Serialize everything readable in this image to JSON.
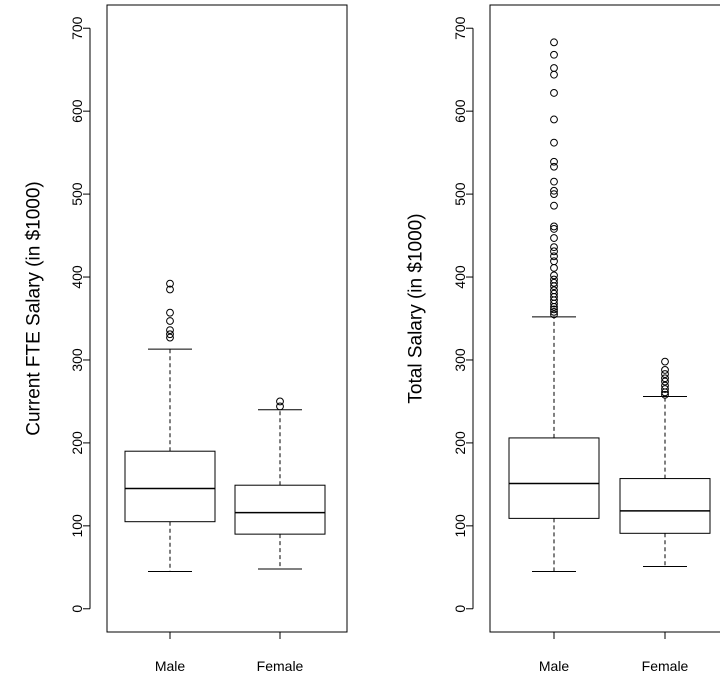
{
  "chart_data": [
    {
      "type": "box",
      "ylabel": "Current FTE Salary (in $1000)",
      "ylim": [
        -28,
        728
      ],
      "yticks": [
        0,
        100,
        200,
        300,
        400,
        500,
        600,
        700
      ],
      "categories": [
        "Male",
        "Female"
      ],
      "boxes": [
        {
          "category": "Male",
          "whisker_low": 45,
          "q1": 105,
          "median": 145,
          "q3": 190,
          "whisker_high": 313,
          "outliers": [
            327,
            331,
            336,
            347,
            357,
            385,
            392
          ]
        },
        {
          "category": "Female",
          "whisker_low": 48,
          "q1": 90,
          "median": 116,
          "q3": 149,
          "whisker_high": 240,
          "outliers": [
            244,
            250
          ]
        }
      ]
    },
    {
      "type": "box",
      "ylabel": "Total Salary (in $1000)",
      "ylim": [
        -28,
        728
      ],
      "yticks": [
        0,
        100,
        200,
        300,
        400,
        500,
        600,
        700
      ],
      "categories": [
        "Male",
        "Female"
      ],
      "boxes": [
        {
          "category": "Male",
          "whisker_low": 45,
          "q1": 109,
          "median": 151,
          "q3": 206,
          "whisker_high": 352,
          "outliers": [
            355,
            358,
            361,
            364,
            368,
            372,
            376,
            380,
            384,
            389,
            393,
            397,
            402,
            411,
            419,
            425,
            431,
            436,
            447,
            458,
            461,
            486,
            500,
            504,
            515,
            533,
            539,
            562,
            590,
            622,
            644,
            652,
            668,
            683
          ]
        },
        {
          "category": "Female",
          "whisker_low": 51,
          "q1": 91,
          "median": 118,
          "q3": 157,
          "whisker_high": 256,
          "outliers": [
            258,
            261,
            265,
            269,
            274,
            278,
            283,
            288,
            298
          ]
        }
      ]
    }
  ]
}
